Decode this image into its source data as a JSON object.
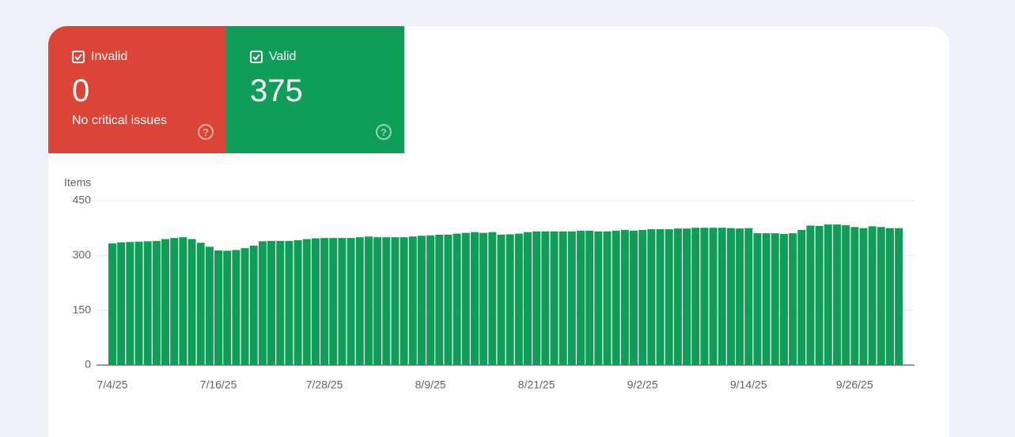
{
  "cards": [
    {
      "label": "Invalid",
      "value": 0,
      "note": "No critical issues"
    },
    {
      "label": "Valid",
      "value": 375
    }
  ],
  "chart_data": {
    "type": "bar",
    "y_label": "Items",
    "color": "#0f9d58",
    "categories": [
      "7/4/25",
      null,
      null,
      null,
      null,
      null,
      null,
      null,
      null,
      null,
      null,
      null,
      "7/16/25",
      null,
      null,
      null,
      null,
      null,
      null,
      null,
      null,
      null,
      null,
      null,
      "7/28/25",
      null,
      null,
      null,
      null,
      null,
      null,
      null,
      null,
      null,
      null,
      null,
      "8/9/25",
      null,
      null,
      null,
      null,
      null,
      null,
      null,
      null,
      null,
      null,
      null,
      "8/21/25",
      null,
      null,
      null,
      null,
      null,
      null,
      null,
      null,
      null,
      null,
      null,
      "9/2/25",
      null,
      null,
      null,
      null,
      null,
      null,
      null,
      null,
      null,
      null,
      null,
      "9/14/25",
      null,
      null,
      null,
      null,
      null,
      null,
      null,
      null,
      null,
      null,
      null,
      "9/26/25",
      null,
      null,
      null,
      null,
      null
    ],
    "values": [
      333,
      336,
      337,
      338,
      339,
      340,
      345,
      348,
      350,
      345,
      335,
      324,
      314,
      313,
      315,
      320,
      327,
      339,
      340,
      340,
      340,
      342,
      345,
      347,
      348,
      348,
      348,
      348,
      350,
      352,
      350,
      350,
      350,
      350,
      352,
      354,
      355,
      357,
      357,
      360,
      362,
      364,
      362,
      364,
      357,
      358,
      360,
      364,
      366,
      366,
      366,
      366,
      366,
      368,
      368,
      366,
      366,
      368,
      370,
      368,
      370,
      372,
      372,
      372,
      374,
      374,
      376,
      376,
      376,
      376,
      375,
      374,
      375,
      361,
      361,
      361,
      359,
      361,
      370,
      382,
      381,
      385,
      385,
      383,
      378,
      375,
      380,
      378,
      375,
      375
    ],
    "ylim": [
      0,
      450
    ],
    "yticks": [
      0,
      150,
      300,
      450
    ],
    "grid": true
  }
}
